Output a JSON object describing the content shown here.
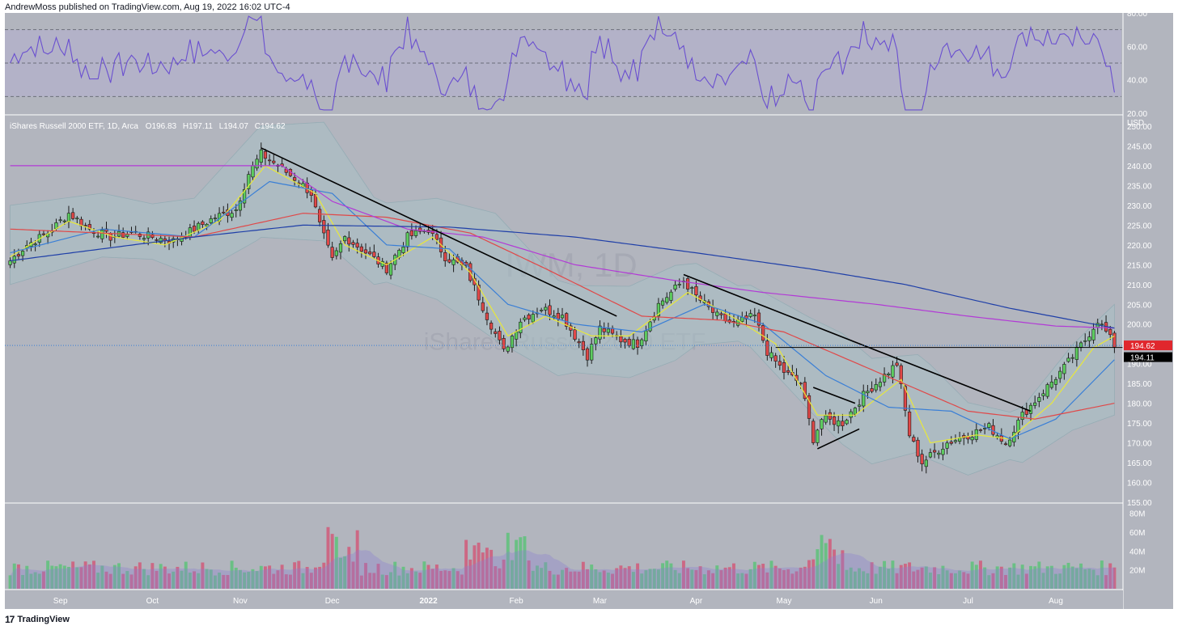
{
  "header": {
    "publish_line": "AndrewMoss published on TradingView.com, Aug 19, 2022 16:02 UTC-4"
  },
  "footer": {
    "brand": "TradingView",
    "logo_glyph": "17"
  },
  "colors": {
    "background": "#b2b5be",
    "rsi_band": "#b5aed0",
    "rsi_line": "#6a4fd0",
    "up": "#4caf50",
    "down": "#e04848",
    "bollinger_fill": "#a9c0c6",
    "bollinger_edge": "#7fa5ad",
    "ema8": "#e8e83a",
    "sma20": "#3a7fd6",
    "sma50": "#e04848",
    "sma100": "#b23ad6",
    "sma200": "#1f3fa8",
    "trendline": "#000000",
    "price_badge": "#e0272d",
    "level_badge": "#000000"
  },
  "chart_data": {
    "type": "candlestick",
    "symbol_line": {
      "name": "iShares Russell 2000 ETF, 1D, Arca",
      "o_label": "O",
      "open": "196.83",
      "h_label": "H",
      "high": "197.11",
      "l_label": "L",
      "low": "194.07",
      "c_label": "C",
      "close": "194.62"
    },
    "watermark": {
      "symbol": "IWM, 1D",
      "name": "iShares Russell 2000 ETF"
    },
    "currency": "USD",
    "price_axis": {
      "min": 155,
      "max": 250,
      "ticks": [
        "250.00",
        "245.00",
        "240.00",
        "235.00",
        "230.00",
        "225.00",
        "220.00",
        "215.00",
        "210.00",
        "205.00",
        "200.00",
        "195.00",
        "190.00",
        "185.00",
        "180.00",
        "175.00",
        "170.00",
        "165.00",
        "160.00",
        "155.00"
      ]
    },
    "rsi_axis": {
      "min": 20,
      "max": 80,
      "ticks": [
        "80.00",
        "60.00",
        "40.00",
        "20.00"
      ],
      "bands": [
        70,
        50,
        30
      ]
    },
    "volume_axis": {
      "max_millions": 90,
      "ticks": [
        "80M",
        "60M",
        "40M",
        "20M"
      ]
    },
    "time_axis": {
      "start": "2021-08-16",
      "end": "2022-08-19",
      "labels": [
        {
          "label": "Sep",
          "date": "2021-09-01"
        },
        {
          "label": "Oct",
          "date": "2021-10-01"
        },
        {
          "label": "Nov",
          "date": "2021-11-01"
        },
        {
          "label": "Dec",
          "date": "2021-12-01"
        },
        {
          "label": "2022",
          "date": "2022-01-03"
        },
        {
          "label": "Feb",
          "date": "2022-02-01"
        },
        {
          "label": "Mar",
          "date": "2022-03-01"
        },
        {
          "label": "Apr",
          "date": "2022-04-01"
        },
        {
          "label": "May",
          "date": "2022-05-02"
        },
        {
          "label": "Jun",
          "date": "2022-06-01"
        },
        {
          "label": "Jul",
          "date": "2022-07-01"
        },
        {
          "label": "Aug",
          "date": "2022-08-01"
        }
      ]
    },
    "close_path": [
      [
        "2021-08-16",
        216
      ],
      [
        "2021-08-20",
        220
      ],
      [
        "2021-08-27",
        223
      ],
      [
        "2021-09-03",
        228
      ],
      [
        "2021-09-10",
        224
      ],
      [
        "2021-09-17",
        222
      ],
      [
        "2021-09-24",
        223
      ],
      [
        "2021-10-01",
        222
      ],
      [
        "2021-10-08",
        221
      ],
      [
        "2021-10-15",
        224
      ],
      [
        "2021-10-22",
        227
      ],
      [
        "2021-10-29",
        229
      ],
      [
        "2021-11-03",
        238
      ],
      [
        "2021-11-08",
        243
      ],
      [
        "2021-11-12",
        240
      ],
      [
        "2021-11-19",
        236
      ],
      [
        "2021-11-24",
        233
      ],
      [
        "2021-11-26",
        225
      ],
      [
        "2021-12-01",
        216
      ],
      [
        "2021-12-06",
        222
      ],
      [
        "2021-12-10",
        219
      ],
      [
        "2021-12-20",
        214
      ],
      [
        "2021-12-27",
        222
      ],
      [
        "2022-01-03",
        224
      ],
      [
        "2022-01-07",
        217
      ],
      [
        "2022-01-14",
        214
      ],
      [
        "2022-01-21",
        202
      ],
      [
        "2022-01-27",
        193
      ],
      [
        "2022-02-02",
        201
      ],
      [
        "2022-02-09",
        204
      ],
      [
        "2022-02-16",
        202
      ],
      [
        "2022-02-24",
        192
      ],
      [
        "2022-03-01",
        199
      ],
      [
        "2022-03-08",
        196
      ],
      [
        "2022-03-14",
        195
      ],
      [
        "2022-03-21",
        205
      ],
      [
        "2022-03-29",
        211
      ],
      [
        "2022-04-01",
        207
      ],
      [
        "2022-04-08",
        202
      ],
      [
        "2022-04-14",
        200
      ],
      [
        "2022-04-21",
        202
      ],
      [
        "2022-04-26",
        193
      ],
      [
        "2022-05-02",
        188
      ],
      [
        "2022-05-06",
        185
      ],
      [
        "2022-05-11",
        171
      ],
      [
        "2022-05-13",
        176
      ],
      [
        "2022-05-20",
        175
      ],
      [
        "2022-05-27",
        182
      ],
      [
        "2022-06-03",
        187
      ],
      [
        "2022-06-08",
        190
      ],
      [
        "2022-06-13",
        172
      ],
      [
        "2022-06-16",
        165
      ],
      [
        "2022-06-24",
        170
      ],
      [
        "2022-07-01",
        172
      ],
      [
        "2022-07-08",
        174
      ],
      [
        "2022-07-14",
        170
      ],
      [
        "2022-07-20",
        177
      ],
      [
        "2022-07-27",
        183
      ],
      [
        "2022-08-03",
        189
      ],
      [
        "2022-08-10",
        196
      ],
      [
        "2022-08-15",
        201
      ],
      [
        "2022-08-17",
        198
      ],
      [
        "2022-08-19",
        194.62
      ]
    ],
    "bollinger_mid_path": [
      [
        "2021-08-16",
        220
      ],
      [
        "2021-09-15",
        225
      ],
      [
        "2021-10-15",
        222
      ],
      [
        "2021-11-08",
        236
      ],
      [
        "2021-11-29",
        236
      ],
      [
        "2021-12-15",
        221
      ],
      [
        "2022-01-05",
        219
      ],
      [
        "2022-01-25",
        212
      ],
      [
        "2022-02-15",
        199
      ],
      [
        "2022-03-10",
        198
      ],
      [
        "2022-04-01",
        205
      ],
      [
        "2022-04-20",
        202
      ],
      [
        "2022-05-10",
        190
      ],
      [
        "2022-05-31",
        178
      ],
      [
        "2022-06-15",
        180
      ],
      [
        "2022-07-01",
        171
      ],
      [
        "2022-07-20",
        172
      ],
      [
        "2022-08-05",
        184
      ],
      [
        "2022-08-19",
        191
      ]
    ],
    "bollinger_width_path": [
      [
        "2021-08-16",
        10
      ],
      [
        "2021-10-01",
        7
      ],
      [
        "2021-11-05",
        14
      ],
      [
        "2021-11-29",
        15
      ],
      [
        "2021-12-20",
        10
      ],
      [
        "2022-01-25",
        16
      ],
      [
        "2022-02-20",
        11
      ],
      [
        "2022-03-25",
        12
      ],
      [
        "2022-04-15",
        7
      ],
      [
        "2022-05-20",
        14
      ],
      [
        "2022-06-20",
        12
      ],
      [
        "2022-07-15",
        6
      ],
      [
        "2022-08-19",
        14
      ]
    ],
    "ma_lines": [
      {
        "name": "EMA 8",
        "color_key": "ema8",
        "values": [
          [
            "2021-08-16",
            217
          ],
          [
            "2021-09-03",
            226
          ],
          [
            "2021-09-20",
            222
          ],
          [
            "2021-10-06",
            220
          ],
          [
            "2021-10-25",
            226
          ],
          [
            "2021-11-09",
            240
          ],
          [
            "2021-11-25",
            233
          ],
          [
            "2021-12-06",
            220
          ],
          [
            "2021-12-20",
            215
          ],
          [
            "2022-01-04",
            222
          ],
          [
            "2022-01-17",
            213
          ],
          [
            "2022-01-28",
            197
          ],
          [
            "2022-02-10",
            202
          ],
          [
            "2022-02-25",
            197
          ],
          [
            "2022-03-10",
            197
          ],
          [
            "2022-03-30",
            208
          ],
          [
            "2022-04-15",
            201
          ],
          [
            "2022-04-28",
            195
          ],
          [
            "2022-05-12",
            177
          ],
          [
            "2022-05-25",
            177
          ],
          [
            "2022-06-09",
            186
          ],
          [
            "2022-06-20",
            170
          ],
          [
            "2022-07-05",
            172
          ],
          [
            "2022-07-15",
            171
          ],
          [
            "2022-07-29",
            180
          ],
          [
            "2022-08-12",
            194
          ],
          [
            "2022-08-19",
            197
          ]
        ]
      },
      {
        "name": "SMA 20",
        "color_key": "sma20",
        "values": [
          [
            "2021-08-16",
            218
          ],
          [
            "2021-09-15",
            224
          ],
          [
            "2021-10-15",
            222
          ],
          [
            "2021-11-10",
            236
          ],
          [
            "2021-12-01",
            233
          ],
          [
            "2021-12-20",
            220
          ],
          [
            "2022-01-10",
            219
          ],
          [
            "2022-01-28",
            205
          ],
          [
            "2022-02-20",
            200
          ],
          [
            "2022-03-15",
            198
          ],
          [
            "2022-04-05",
            205
          ],
          [
            "2022-04-25",
            200
          ],
          [
            "2022-05-15",
            187
          ],
          [
            "2022-06-05",
            179
          ],
          [
            "2022-06-25",
            178
          ],
          [
            "2022-07-15",
            171
          ],
          [
            "2022-08-01",
            176
          ],
          [
            "2022-08-19",
            191
          ]
        ]
      },
      {
        "name": "SMA 50",
        "color_key": "sma50",
        "values": [
          [
            "2021-08-16",
            224
          ],
          [
            "2021-10-15",
            222
          ],
          [
            "2021-11-20",
            228
          ],
          [
            "2021-12-20",
            227
          ],
          [
            "2022-01-15",
            223
          ],
          [
            "2022-02-10",
            214
          ],
          [
            "2022-03-15",
            202
          ],
          [
            "2022-04-10",
            201
          ],
          [
            "2022-05-01",
            198
          ],
          [
            "2022-06-01",
            188
          ],
          [
            "2022-07-01",
            178
          ],
          [
            "2022-07-25",
            176
          ],
          [
            "2022-08-19",
            180
          ]
        ]
      },
      {
        "name": "SMA 100",
        "color_key": "sma100",
        "values": [
          [
            "2021-11-15",
            240
          ],
          [
            "2021-12-01",
            231
          ],
          [
            "2021-12-25",
            224
          ],
          [
            "2022-01-20",
            222
          ],
          [
            "2022-02-20",
            215
          ],
          [
            "2022-03-25",
            211
          ],
          [
            "2022-04-25",
            208
          ],
          [
            "2022-06-01",
            205
          ],
          [
            "2022-07-01",
            202
          ],
          [
            "2022-08-01",
            199.5
          ],
          [
            "2022-08-19",
            199
          ]
        ]
      },
      {
        "name": "SMA 200",
        "color_key": "sma200",
        "values": [
          [
            "2021-08-16",
            216
          ],
          [
            "2021-10-15",
            222
          ],
          [
            "2021-11-20",
            225
          ],
          [
            "2022-01-10",
            224.5
          ],
          [
            "2022-02-20",
            222
          ],
          [
            "2022-04-01",
            218
          ],
          [
            "2022-05-10",
            214
          ],
          [
            "2022-06-10",
            210
          ],
          [
            "2022-07-15",
            204
          ],
          [
            "2022-08-19",
            199
          ]
        ]
      }
    ],
    "trendlines": [
      {
        "name": "downtrend-1",
        "from": [
          "2021-11-08",
          244.5
        ],
        "to": [
          "2022-03-07",
          202
        ]
      },
      {
        "name": "downtrend-2",
        "from": [
          "2022-03-29",
          212.5
        ],
        "to": [
          "2022-07-22",
          178
        ]
      },
      {
        "name": "support-wedge",
        "from": [
          "2022-05-12",
          168.5
        ],
        "to": [
          "2022-05-26",
          173.5
        ]
      },
      {
        "name": "resistance-wedge",
        "from": [
          "2022-05-11",
          184
        ],
        "to": [
          "2022-05-25",
          180
        ]
      }
    ],
    "horizontal_levels": [
      {
        "price": 194.11,
        "from": "2022-04-28",
        "label": "194.11"
      }
    ],
    "last_price": {
      "price": 194.62,
      "label": "194.62"
    }
  }
}
